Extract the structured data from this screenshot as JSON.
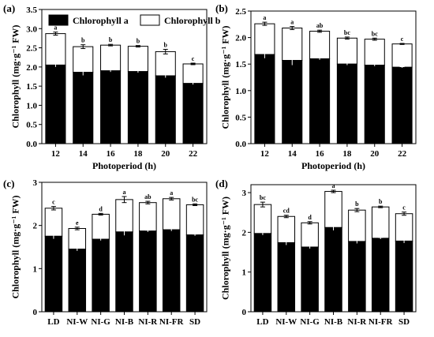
{
  "colors": {
    "chlorophyll_a": "#000000",
    "chlorophyll_b": "#ffffff",
    "outline": "#000000"
  },
  "legend": {
    "items": [
      {
        "label": "Chlorophyll a",
        "color": "#000000"
      },
      {
        "label": "Chlorophyll b",
        "color": "#ffffff"
      }
    ],
    "placement": "top, inside panel (a)"
  },
  "chart_data": [
    {
      "type": "bar",
      "stacked": true,
      "panel": "(a)",
      "xlabel": "Photoperiod (h)",
      "ylabel": "Chlorophyll (mg·g⁻¹ FW)",
      "ylim": [
        0,
        3.5
      ],
      "yticks": [
        "0.0",
        "0.5",
        "1.0",
        "1.5",
        "2.0",
        "2.5",
        "3.0",
        "3.5"
      ],
      "categories": [
        "12",
        "14",
        "16",
        "18",
        "20",
        "22"
      ],
      "series": [
        {
          "name": "Chlorophyll a",
          "values": [
            2.05,
            1.86,
            1.9,
            1.88,
            1.77,
            1.57
          ],
          "errors": [
            0.05,
            0.08,
            0.03,
            0.03,
            0.05,
            0.03
          ]
        },
        {
          "name": "Chlorophyll b",
          "values": [
            0.82,
            0.67,
            0.67,
            0.66,
            0.63,
            0.51
          ]
        }
      ],
      "total_errors": [
        0.04,
        0.05,
        0.02,
        0.02,
        0.06,
        0.02
      ],
      "significance": [
        "a",
        "b",
        "b",
        "b",
        "b",
        "c"
      ]
    },
    {
      "type": "bar",
      "stacked": true,
      "panel": "(b)",
      "xlabel": "Photoperiod (h)",
      "ylabel": "Chlorophyll (mg·g⁻¹ FW)",
      "ylim": [
        0,
        2.5
      ],
      "yticks": [
        "0.0",
        "0.5",
        "1.0",
        "1.5",
        "2.0",
        "2.5"
      ],
      "categories": [
        "12",
        "14",
        "16",
        "18",
        "20",
        "22"
      ],
      "series": [
        {
          "name": "Chlorophyll a",
          "values": [
            1.68,
            1.57,
            1.6,
            1.5,
            1.48,
            1.44
          ],
          "errors": [
            0.07,
            0.09,
            0.02,
            0.02,
            0.02,
            0.01
          ]
        },
        {
          "name": "Chlorophyll b",
          "values": [
            0.58,
            0.61,
            0.52,
            0.49,
            0.49,
            0.44
          ]
        }
      ],
      "total_errors": [
        0.03,
        0.03,
        0.02,
        0.02,
        0.02,
        0.01
      ],
      "significance": [
        "a",
        "a",
        "ab",
        "bc",
        "bc",
        "c"
      ]
    },
    {
      "type": "bar",
      "stacked": true,
      "panel": "(c)",
      "xlabel": "",
      "ylabel": "Chlorophyll (mg·g⁻¹ FW)",
      "ylim": [
        0,
        3
      ],
      "yticks": [
        "0",
        "1",
        "2",
        "3"
      ],
      "categories": [
        "LD",
        "NI-W",
        "NI-G",
        "NI-B",
        "NI-R",
        "NI-FR",
        "SD"
      ],
      "series": [
        {
          "name": "Chlorophyll a",
          "values": [
            1.75,
            1.45,
            1.68,
            1.85,
            1.87,
            1.9,
            1.78
          ],
          "errors": [
            0.06,
            0.04,
            0.03,
            0.08,
            0.02,
            0.03,
            0.02
          ]
        },
        {
          "name": "Chlorophyll b",
          "values": [
            0.65,
            0.48,
            0.58,
            0.75,
            0.66,
            0.72,
            0.7
          ]
        }
      ],
      "total_errors": [
        0.04,
        0.03,
        0.02,
        0.07,
        0.03,
        0.03,
        0.02
      ],
      "significance": [
        "c",
        "e",
        "d",
        "a",
        "ab",
        "a",
        "bc"
      ]
    },
    {
      "type": "bar",
      "stacked": true,
      "panel": "(d)",
      "xlabel": "",
      "ylabel": "Chlorophyll (mg·g⁻¹ FW)",
      "ylim": [
        0,
        3.2
      ],
      "yticks": [
        "0",
        "1",
        "2",
        "3"
      ],
      "categories": [
        "LD",
        "NI-W",
        "NI-G",
        "NI-B",
        "NI-R",
        "NI-FR",
        "SD"
      ],
      "series": [
        {
          "name": "Chlorophyll a",
          "values": [
            1.97,
            1.74,
            1.63,
            2.12,
            1.77,
            1.85,
            1.78
          ],
          "errors": [
            0.04,
            0.06,
            0.04,
            0.07,
            0.05,
            0.02,
            0.05
          ]
        },
        {
          "name": "Chlorophyll b",
          "values": [
            0.73,
            0.66,
            0.61,
            0.91,
            0.79,
            0.79,
            0.69
          ]
        }
      ],
      "total_errors": [
        0.06,
        0.03,
        0.03,
        0.03,
        0.04,
        0.02,
        0.04
      ],
      "significance": [
        "bc",
        "cd",
        "d",
        "a",
        "b",
        "b",
        "c"
      ]
    }
  ]
}
